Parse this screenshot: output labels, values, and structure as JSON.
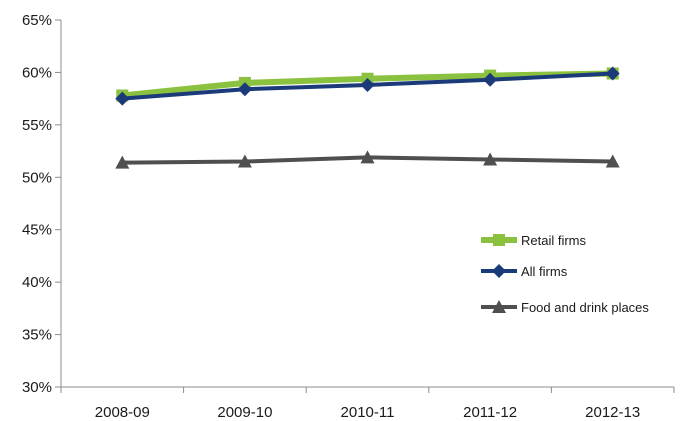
{
  "chart_data": {
    "type": "line",
    "title": "",
    "xlabel": "",
    "ylabel": "",
    "categories": [
      "2008-09",
      "2009-10",
      "2010-11",
      "2011-12",
      "2012-13"
    ],
    "y_ticks": [
      "30%",
      "35%",
      "40%",
      "45%",
      "50%",
      "55%",
      "60%",
      "65%"
    ],
    "ylim": [
      30,
      65
    ],
    "y_unit": "%",
    "grid": false,
    "legend_position": "right",
    "series": [
      {
        "name": "Retail firms",
        "marker": "square",
        "color": "#8ac13f",
        "values": [
          57.8,
          59.0,
          59.4,
          59.7,
          59.9
        ]
      },
      {
        "name": "All firms",
        "marker": "diamond",
        "color": "#1b3a7a",
        "values": [
          57.5,
          58.4,
          58.8,
          59.3,
          59.9
        ]
      },
      {
        "name": "Food and drink places",
        "marker": "triangle",
        "color": "#4f4f4f",
        "values": [
          51.4,
          51.5,
          51.9,
          51.7,
          51.5
        ]
      }
    ]
  }
}
